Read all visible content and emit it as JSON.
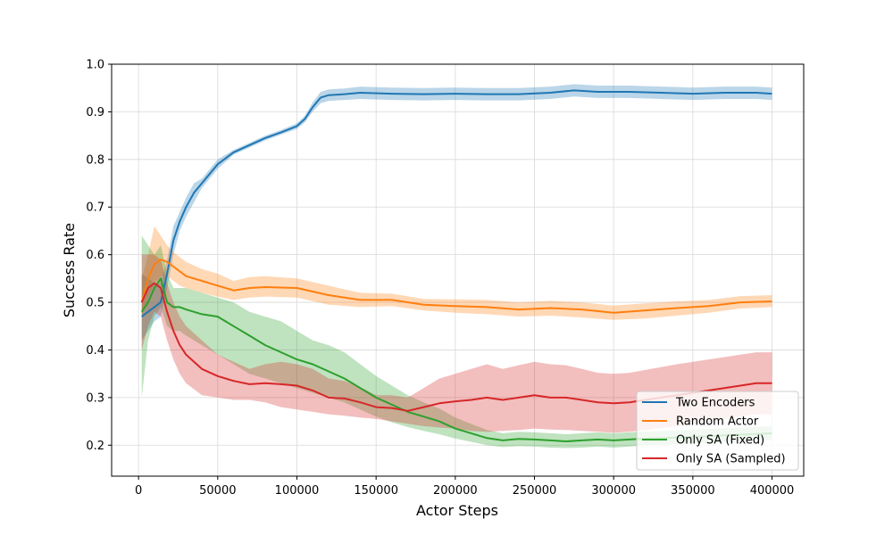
{
  "chart_data": {
    "type": "line",
    "title": "",
    "xlabel": "Actor Steps",
    "ylabel": "Success Rate",
    "xlim": [
      -17000,
      420000
    ],
    "ylim": [
      0.135,
      1.0
    ],
    "xticks": [
      0,
      50000,
      100000,
      150000,
      200000,
      250000,
      300000,
      350000,
      400000
    ],
    "yticks": [
      0.2,
      0.3,
      0.4,
      0.5,
      0.6,
      0.7,
      0.8,
      0.9,
      1.0
    ],
    "grid": true,
    "legend_position": "lower right",
    "series": [
      {
        "name": "Two Encoders",
        "color": "#1f77b4",
        "x": [
          2000,
          6000,
          10000,
          14000,
          18000,
          22000,
          26000,
          30000,
          35000,
          40000,
          50000,
          60000,
          70000,
          80000,
          90000,
          100000,
          105000,
          110000,
          115000,
          120000,
          130000,
          140000,
          160000,
          180000,
          200000,
          220000,
          240000,
          260000,
          275000,
          290000,
          310000,
          330000,
          350000,
          370000,
          390000,
          400000
        ],
        "y": [
          0.47,
          0.48,
          0.49,
          0.5,
          0.56,
          0.63,
          0.67,
          0.7,
          0.73,
          0.75,
          0.79,
          0.815,
          0.83,
          0.845,
          0.857,
          0.87,
          0.885,
          0.91,
          0.93,
          0.935,
          0.937,
          0.94,
          0.938,
          0.937,
          0.938,
          0.937,
          0.937,
          0.94,
          0.945,
          0.942,
          0.942,
          0.94,
          0.938,
          0.94,
          0.94,
          0.938
        ],
        "lower": [
          0.42,
          0.44,
          0.46,
          0.47,
          0.53,
          0.6,
          0.65,
          0.68,
          0.71,
          0.74,
          0.78,
          0.81,
          0.825,
          0.84,
          0.852,
          0.864,
          0.878,
          0.9,
          0.918,
          0.923,
          0.925,
          0.927,
          0.925,
          0.924,
          0.925,
          0.924,
          0.924,
          0.927,
          0.932,
          0.929,
          0.929,
          0.927,
          0.925,
          0.927,
          0.927,
          0.925
        ],
        "upper": [
          0.56,
          0.55,
          0.54,
          0.54,
          0.59,
          0.66,
          0.69,
          0.72,
          0.75,
          0.76,
          0.8,
          0.82,
          0.835,
          0.85,
          0.862,
          0.876,
          0.892,
          0.92,
          0.942,
          0.947,
          0.949,
          0.953,
          0.951,
          0.95,
          0.951,
          0.95,
          0.95,
          0.953,
          0.958,
          0.955,
          0.955,
          0.953,
          0.951,
          0.953,
          0.953,
          0.951
        ]
      },
      {
        "name": "Random Actor",
        "color": "#ff7f0e",
        "x": [
          2000,
          6000,
          10000,
          14000,
          18000,
          22000,
          26000,
          30000,
          40000,
          50000,
          60000,
          70000,
          80000,
          100000,
          120000,
          140000,
          160000,
          180000,
          200000,
          220000,
          240000,
          260000,
          280000,
          300000,
          320000,
          340000,
          360000,
          380000,
          400000
        ],
        "y": [
          0.5,
          0.55,
          0.58,
          0.59,
          0.585,
          0.575,
          0.565,
          0.555,
          0.545,
          0.535,
          0.525,
          0.53,
          0.532,
          0.53,
          0.515,
          0.505,
          0.505,
          0.495,
          0.492,
          0.49,
          0.485,
          0.488,
          0.485,
          0.478,
          0.483,
          0.488,
          0.492,
          0.5,
          0.502
        ],
        "lower": [
          0.47,
          0.51,
          0.54,
          0.555,
          0.555,
          0.545,
          0.535,
          0.53,
          0.52,
          0.512,
          0.505,
          0.51,
          0.512,
          0.51,
          0.495,
          0.49,
          0.492,
          0.483,
          0.478,
          0.475,
          0.47,
          0.472,
          0.468,
          0.463,
          0.466,
          0.472,
          0.478,
          0.487,
          0.49
        ],
        "upper": [
          0.55,
          0.6,
          0.66,
          0.64,
          0.62,
          0.605,
          0.595,
          0.585,
          0.57,
          0.56,
          0.545,
          0.553,
          0.555,
          0.55,
          0.535,
          0.52,
          0.518,
          0.507,
          0.506,
          0.505,
          0.5,
          0.503,
          0.5,
          0.493,
          0.498,
          0.502,
          0.505,
          0.513,
          0.515
        ]
      },
      {
        "name": "Only SA (Fixed)",
        "color": "#2ca02c",
        "x": [
          2000,
          6000,
          10000,
          14000,
          18000,
          22000,
          26000,
          30000,
          40000,
          50000,
          60000,
          70000,
          80000,
          90000,
          100000,
          110000,
          120000,
          130000,
          140000,
          150000,
          160000,
          170000,
          180000,
          190000,
          200000,
          210000,
          220000,
          230000,
          240000,
          250000,
          260000,
          270000,
          280000,
          290000,
          300000,
          310000,
          320000,
          340000,
          360000,
          380000,
          400000
        ],
        "y": [
          0.48,
          0.5,
          0.53,
          0.55,
          0.5,
          0.49,
          0.49,
          0.485,
          0.475,
          0.47,
          0.45,
          0.43,
          0.41,
          0.395,
          0.38,
          0.37,
          0.355,
          0.34,
          0.32,
          0.3,
          0.285,
          0.27,
          0.26,
          0.25,
          0.235,
          0.225,
          0.215,
          0.21,
          0.213,
          0.212,
          0.21,
          0.208,
          0.21,
          0.212,
          0.21,
          0.212,
          0.214,
          0.216,
          0.219,
          0.222,
          0.225
        ],
        "lower": [
          0.3,
          0.42,
          0.47,
          0.49,
          0.45,
          0.44,
          0.44,
          0.43,
          0.41,
          0.39,
          0.37,
          0.35,
          0.34,
          0.33,
          0.32,
          0.31,
          0.3,
          0.29,
          0.275,
          0.26,
          0.248,
          0.238,
          0.23,
          0.223,
          0.214,
          0.207,
          0.2,
          0.196,
          0.198,
          0.197,
          0.195,
          0.194,
          0.195,
          0.197,
          0.195,
          0.197,
          0.2,
          0.202,
          0.205,
          0.208,
          0.211
        ],
        "upper": [
          0.64,
          0.62,
          0.6,
          0.62,
          0.56,
          0.53,
          0.53,
          0.53,
          0.52,
          0.51,
          0.5,
          0.48,
          0.47,
          0.46,
          0.44,
          0.42,
          0.41,
          0.395,
          0.37,
          0.345,
          0.325,
          0.305,
          0.29,
          0.277,
          0.258,
          0.245,
          0.232,
          0.225,
          0.228,
          0.227,
          0.225,
          0.223,
          0.225,
          0.227,
          0.225,
          0.227,
          0.229,
          0.231,
          0.234,
          0.237,
          0.24
        ]
      },
      {
        "name": "Only SA (Sampled)",
        "color": "#d62728",
        "x": [
          2000,
          6000,
          10000,
          14000,
          18000,
          22000,
          26000,
          30000,
          40000,
          50000,
          60000,
          70000,
          80000,
          90000,
          100000,
          110000,
          120000,
          130000,
          140000,
          150000,
          160000,
          170000,
          180000,
          190000,
          200000,
          210000,
          220000,
          230000,
          240000,
          250000,
          260000,
          270000,
          280000,
          290000,
          300000,
          310000,
          320000,
          340000,
          360000,
          380000,
          390000,
          400000
        ],
        "y": [
          0.5,
          0.53,
          0.54,
          0.53,
          0.48,
          0.44,
          0.41,
          0.39,
          0.36,
          0.345,
          0.335,
          0.328,
          0.33,
          0.328,
          0.325,
          0.315,
          0.3,
          0.298,
          0.29,
          0.28,
          0.278,
          0.272,
          0.28,
          0.288,
          0.292,
          0.295,
          0.3,
          0.295,
          0.3,
          0.305,
          0.3,
          0.3,
          0.295,
          0.29,
          0.288,
          0.29,
          0.295,
          0.305,
          0.315,
          0.325,
          0.33,
          0.33
        ],
        "lower": [
          0.4,
          0.45,
          0.48,
          0.47,
          0.42,
          0.38,
          0.35,
          0.33,
          0.305,
          0.3,
          0.295,
          0.295,
          0.29,
          0.28,
          0.275,
          0.27,
          0.265,
          0.262,
          0.258,
          0.255,
          0.25,
          0.245,
          0.24,
          0.237,
          0.235,
          0.23,
          0.228,
          0.23,
          0.232,
          0.235,
          0.233,
          0.232,
          0.23,
          0.228,
          0.226,
          0.228,
          0.232,
          0.24,
          0.25,
          0.26,
          0.265,
          0.265
        ],
        "upper": [
          0.6,
          0.6,
          0.6,
          0.59,
          0.54,
          0.5,
          0.47,
          0.45,
          0.42,
          0.39,
          0.375,
          0.36,
          0.37,
          0.375,
          0.37,
          0.36,
          0.34,
          0.335,
          0.322,
          0.305,
          0.305,
          0.3,
          0.32,
          0.34,
          0.35,
          0.36,
          0.37,
          0.36,
          0.368,
          0.375,
          0.37,
          0.368,
          0.36,
          0.352,
          0.35,
          0.352,
          0.358,
          0.37,
          0.38,
          0.39,
          0.395,
          0.395
        ]
      }
    ]
  },
  "colors": {
    "grid": "#d9d9d9",
    "axis": "#000000",
    "legend_border": "#cccccc"
  }
}
